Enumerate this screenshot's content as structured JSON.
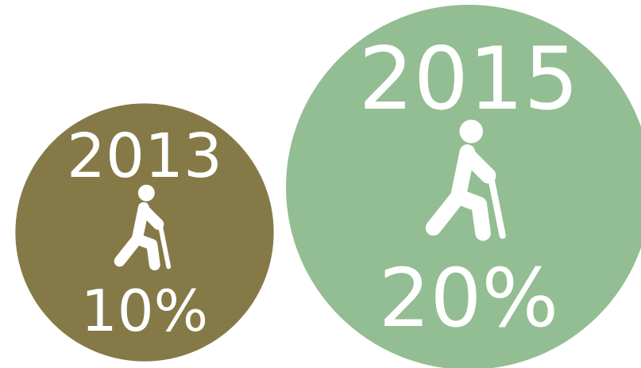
{
  "chart_data": {
    "type": "bubble",
    "categories": [
      "2013",
      "2015"
    ],
    "values": [
      10,
      20
    ],
    "value_labels": [
      "10%",
      "20%"
    ],
    "colors": [
      "#857a47",
      "#93bd92"
    ]
  }
}
